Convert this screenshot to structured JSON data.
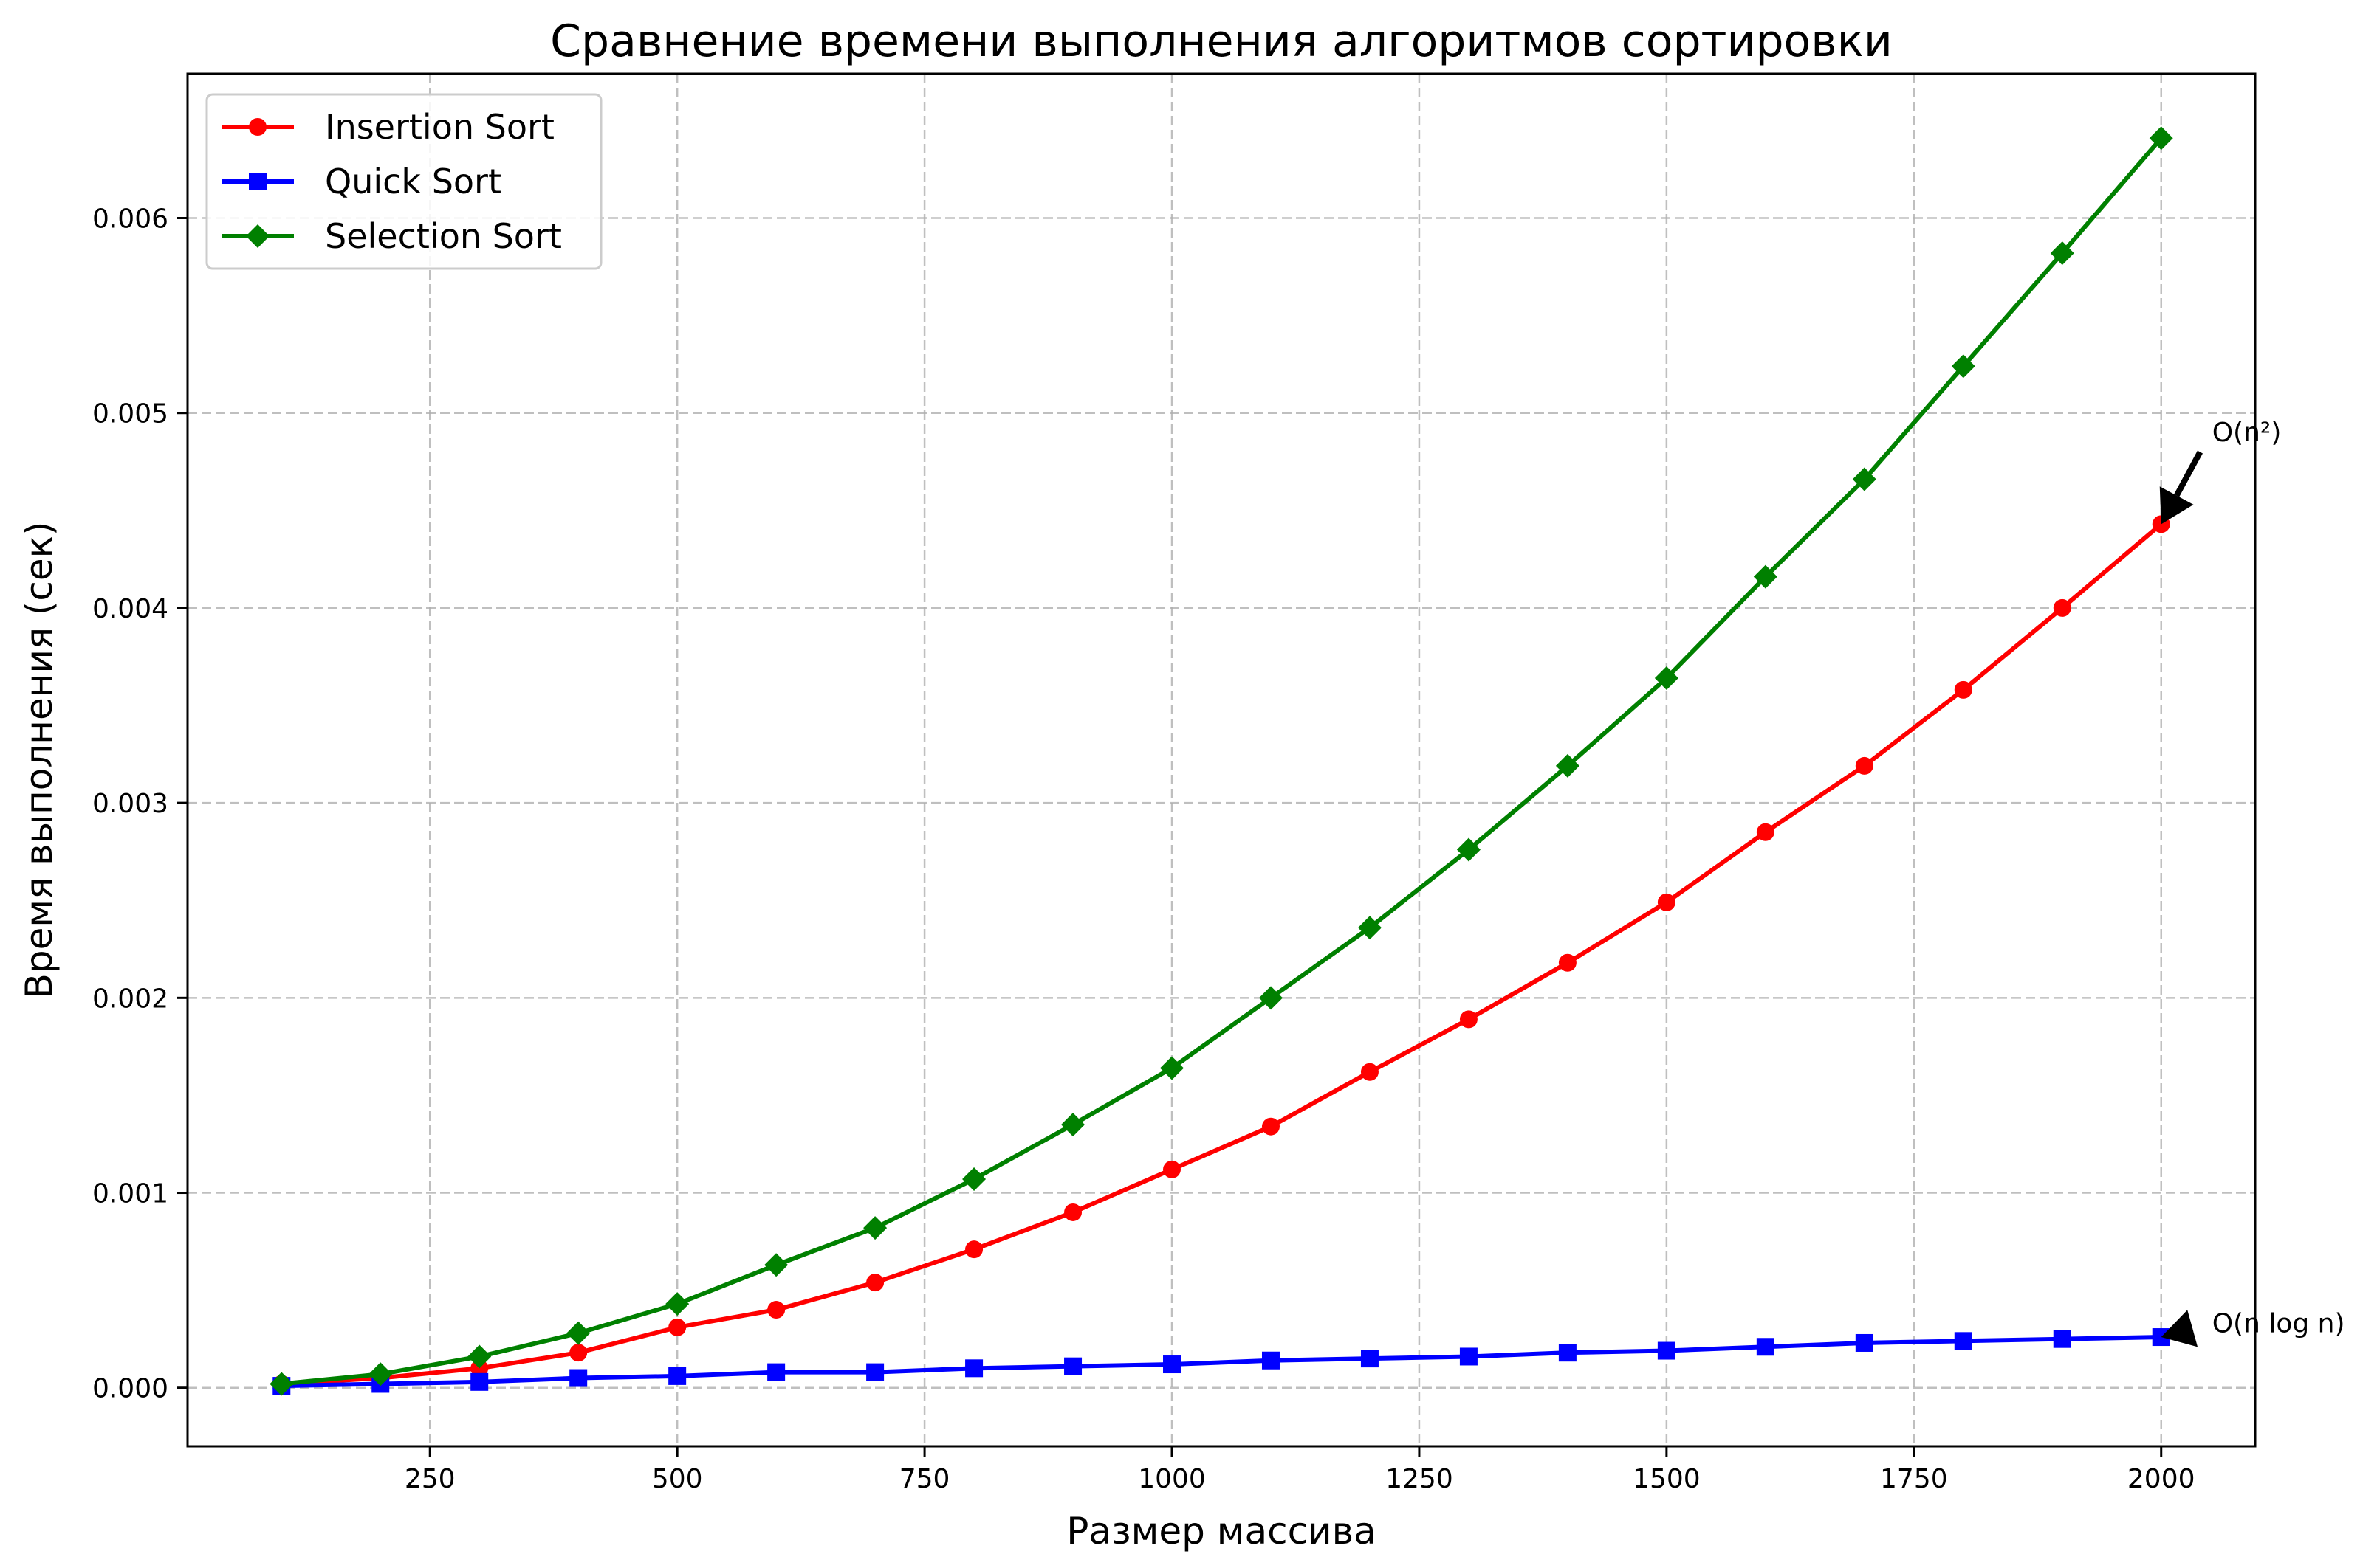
{
  "chart_data": {
    "type": "line",
    "title": "Сравнение времени выполнения алгоритмов сортировки",
    "xlabel": "Размер массива",
    "ylabel": "Время выполнения (сек)",
    "xlim": [
      5,
      2095
    ],
    "ylim": [
      -0.0003,
      0.00674
    ],
    "xticks": [
      250,
      500,
      750,
      1000,
      1250,
      1500,
      1750,
      2000
    ],
    "xtick_labels": [
      "250",
      "500",
      "750",
      "1000",
      "1250",
      "1500",
      "1750",
      "2000"
    ],
    "yticks": [
      0,
      0.001,
      0.002,
      0.003,
      0.004,
      0.005,
      0.006
    ],
    "ytick_labels": [
      "0.000",
      "0.001",
      "0.002",
      "0.003",
      "0.004",
      "0.005",
      "0.006"
    ],
    "grid": true,
    "legend_position": "top-left",
    "x": [
      100,
      200,
      300,
      400,
      500,
      600,
      700,
      800,
      900,
      1000,
      1100,
      1200,
      1300,
      1400,
      1500,
      1600,
      1700,
      1800,
      1900,
      2000
    ],
    "series": [
      {
        "name": "Insertion Sort",
        "color": "#ff0000",
        "marker": "circle",
        "values": [
          2e-05,
          5e-05,
          0.0001,
          0.00018,
          0.00031,
          0.0004,
          0.00054,
          0.00071,
          0.0009,
          0.00112,
          0.00134,
          0.00162,
          0.00189,
          0.00218,
          0.00249,
          0.00285,
          0.00319,
          0.00358,
          0.004,
          0.00443
        ]
      },
      {
        "name": "Quick Sort",
        "color": "#0000ff",
        "marker": "square",
        "values": [
          1e-05,
          2e-05,
          3e-05,
          5e-05,
          6e-05,
          8e-05,
          8e-05,
          0.0001,
          0.00011,
          0.00012,
          0.00014,
          0.00015,
          0.00016,
          0.00018,
          0.00019,
          0.00021,
          0.00023,
          0.00024,
          0.00025,
          0.00026
        ]
      },
      {
        "name": "Selection Sort",
        "color": "#008000",
        "marker": "diamond",
        "values": [
          2e-05,
          7e-05,
          0.00016,
          0.00028,
          0.00043,
          0.00063,
          0.00082,
          0.00107,
          0.00135,
          0.00164,
          0.002,
          0.00236,
          0.00276,
          0.00319,
          0.00364,
          0.00416,
          0.00466,
          0.00524,
          0.00582,
          0.00641
        ]
      }
    ],
    "annotations": [
      {
        "text": "O(n²)",
        "x": 2000,
        "y": 0.00443,
        "text_x": 2050,
        "text_y": 0.0049
      },
      {
        "text": "O(n log n)",
        "x": 2000,
        "y": 0.00026,
        "text_x": 2050,
        "text_y": 0.00033
      }
    ]
  }
}
